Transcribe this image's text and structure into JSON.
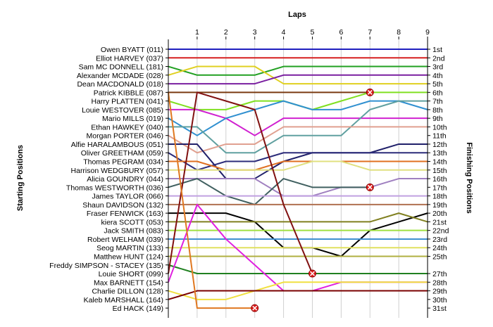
{
  "chart_data": {
    "type": "line",
    "title": "",
    "xlabel": "Laps",
    "ylabel_left": "Starting Positions",
    "ylabel_right": "Finishing Positions",
    "laps": [
      1,
      2,
      3,
      4,
      5,
      6,
      7,
      8,
      9
    ],
    "finishing_labels": [
      "1st",
      "2nd",
      "3rd",
      "4th",
      "5th",
      "6th",
      "7th",
      "8th",
      "9th",
      "10th",
      "11th",
      "12th",
      "13th",
      "14th",
      "15th",
      "16th",
      "17th",
      "18th",
      "19th",
      "20th",
      "21st",
      "22nd",
      "23rd",
      "24th",
      "25th",
      "27th",
      "28th",
      "29th",
      "30th",
      "31st"
    ],
    "finishing_rows": [
      1,
      2,
      3,
      4,
      5,
      6,
      7,
      8,
      9,
      10,
      11,
      12,
      13,
      14,
      15,
      16,
      17,
      18,
      19,
      20,
      21,
      22,
      23,
      24,
      25,
      27,
      28,
      29,
      30,
      31
    ],
    "grid_x": true,
    "grid_y": false,
    "series": [
      {
        "name": "Owen BYATT (011)",
        "color": "#1f1fbf",
        "positions": [
          1,
          1,
          1,
          1,
          1,
          1,
          1,
          1,
          1,
          1
        ]
      },
      {
        "name": "Elliot HARVEY (037)",
        "color": "#d62020",
        "positions": [
          2,
          2,
          2,
          2,
          2,
          2,
          2,
          2,
          2,
          2
        ]
      },
      {
        "name": "Sam MC DONNELL (181)",
        "color": "#22a022",
        "positions": [
          3,
          4,
          4,
          4,
          3,
          3,
          3,
          3,
          3,
          3
        ]
      },
      {
        "name": "Alexander MCDADE (028)",
        "color": "#e0d020",
        "positions": [
          4,
          3,
          3,
          3,
          5,
          5,
          5,
          5,
          5,
          5
        ]
      },
      {
        "name": "Dean MACDONALD (018)",
        "color": "#7a1fa0",
        "positions": [
          5,
          5,
          5,
          5,
          4,
          4,
          4,
          4,
          4,
          4
        ]
      },
      {
        "name": "Patrick KIBBLE (087)",
        "color": "#7a3a10",
        "positions": [
          6,
          6,
          6,
          6,
          6,
          6,
          6,
          6
        ],
        "crash": true
      },
      {
        "name": "Harry PLATTEN (041)",
        "color": "#80e020",
        "positions": [
          7,
          8,
          8,
          7,
          7,
          8,
          7,
          6,
          6,
          6
        ]
      },
      {
        "name": "Louie WESTOVER (085)",
        "color": "#d020d0",
        "positions": [
          8,
          8,
          9,
          11,
          9,
          9,
          9,
          9,
          9,
          9
        ]
      },
      {
        "name": "Mario MILLS (019)",
        "color": "#3090d0",
        "positions": [
          9,
          11,
          9,
          8,
          7,
          8,
          8,
          7,
          7,
          8
        ]
      },
      {
        "name": "Ethan HAWKEY (040)",
        "color": "#60a0a0",
        "positions": [
          10,
          10,
          13,
          13,
          11,
          11,
          11,
          8,
          7,
          7
        ]
      },
      {
        "name": "Morgan PORTER (046)",
        "color": "#e0a090",
        "positions": [
          11,
          13,
          12,
          12,
          10,
          10,
          10,
          10,
          10,
          10
        ]
      },
      {
        "name": "Alfie HARALAMBOUS (051)",
        "color": "#20206a",
        "positions": [
          12,
          12,
          16,
          16,
          14,
          13,
          13,
          13,
          12,
          12
        ]
      },
      {
        "name": "Oliver GREETHAM (059)",
        "color": "#2c2c7a",
        "positions": [
          13,
          15,
          14,
          14,
          13,
          13,
          13,
          13,
          13,
          13
        ]
      },
      {
        "name": "Thomas PEGRAM (034)",
        "color": "#e07020",
        "positions": [
          14,
          14,
          15,
          15,
          14,
          14,
          14,
          14,
          14,
          14
        ]
      },
      {
        "name": "Harrison WEDGBURY (057)",
        "color": "#e0e080",
        "positions": [
          15,
          15,
          15,
          15,
          15,
          14,
          14,
          15,
          15,
          15
        ]
      },
      {
        "name": "Alicia GOUNDRY (044)",
        "color": "#a080c0",
        "positions": [
          16,
          16,
          16,
          16,
          18,
          18,
          17,
          17,
          16,
          16
        ]
      },
      {
        "name": "Thomas WESTWORTH (036)",
        "color": "#406060",
        "positions": [
          17,
          16,
          18,
          19,
          16,
          17,
          17,
          17
        ],
        "crash": true
      },
      {
        "name": "James TAYLOR (066)",
        "color": "#c0a0e0",
        "positions": [
          18,
          18,
          18,
          18,
          18,
          18,
          18,
          18,
          18,
          18
        ]
      },
      {
        "name": "Shaun DAVIDSON (132)",
        "color": "#b07050",
        "positions": [
          19,
          19,
          19,
          19,
          19,
          19,
          19,
          19,
          19,
          19
        ]
      },
      {
        "name": "Fraser FENWICK (163)",
        "color": "#000000",
        "positions": [
          20,
          20,
          20,
          21,
          24,
          24,
          25,
          22,
          21,
          20
        ]
      },
      {
        "name": "kiera SCOTT (053)",
        "color": "#808020",
        "positions": [
          21,
          21,
          21,
          21,
          21,
          21,
          21,
          21,
          20,
          21
        ]
      },
      {
        "name": "Jack SMITH (083)",
        "color": "#a0e040",
        "positions": [
          22,
          22,
          22,
          22,
          22,
          22,
          22,
          22,
          22,
          22
        ]
      },
      {
        "name": "Robert WELHAM (039)",
        "color": "#4090d0",
        "positions": [
          23,
          23,
          23,
          23,
          23,
          23,
          23,
          23,
          23,
          23
        ]
      },
      {
        "name": "Seog MARTIN (133)",
        "color": "#e0e060",
        "positions": [
          24,
          24,
          24,
          24,
          24,
          24,
          24,
          24,
          24,
          24
        ]
      },
      {
        "name": "Matthew HUNT (124)",
        "color": "#b0b040",
        "positions": [
          25,
          25,
          25,
          25,
          25,
          25,
          25,
          25,
          25,
          25
        ]
      },
      {
        "name": "Freddy SIMPSON - STACEY (135)",
        "color": "#208020",
        "positions": [
          26,
          27,
          27,
          27,
          27,
          27,
          27,
          27,
          27,
          27
        ]
      },
      {
        "name": "Louie SHORT (099)",
        "color": "#801010",
        "positions": [
          27,
          6,
          7,
          8,
          19,
          27
        ],
        "crash": true
      },
      {
        "name": "Max BARNETT (154)",
        "color": "#e020e0",
        "positions": [
          28,
          19,
          23,
          26,
          29,
          29,
          28,
          28,
          28,
          28
        ]
      },
      {
        "name": "Charlie DILLON (128)",
        "color": "#f0e040",
        "positions": [
          29,
          30,
          30,
          29,
          28,
          28,
          28,
          28,
          28,
          28
        ]
      },
      {
        "name": "Kaleb MARSHALL (164)",
        "color": "#7a0000",
        "positions": [
          30,
          29,
          29,
          29,
          29,
          29,
          29,
          29,
          29,
          29
        ]
      },
      {
        "name": "Ed HACK (149)",
        "color": "#e07820",
        "positions": [
          6,
          31,
          31,
          31
        ],
        "crash": true
      }
    ]
  }
}
